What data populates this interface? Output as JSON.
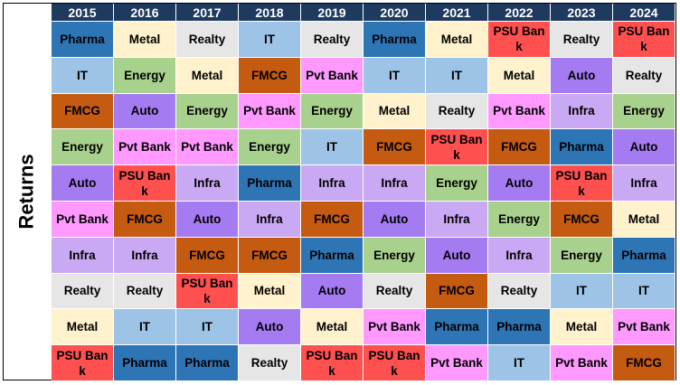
{
  "chart_data": {
    "type": "table",
    "ylabel": "Returns",
    "years": [
      "2015",
      "2016",
      "2017",
      "2018",
      "2019",
      "2020",
      "2021",
      "2022",
      "2023",
      "2024"
    ],
    "columns": [
      [
        "Pharma",
        "IT",
        "FMCG",
        "Energy",
        "Auto",
        "Pvt Bank",
        "Infra",
        "Realty",
        "Metal",
        "PSU Bank"
      ],
      [
        "Metal",
        "Energy",
        "Auto",
        "Pvt Bank",
        "PSU Bank",
        "FMCG",
        "Infra",
        "Realty",
        "IT",
        "Pharma"
      ],
      [
        "Realty",
        "Metal",
        "Energy",
        "Pvt Bank",
        "Infra",
        "Auto",
        "FMCG",
        "PSU Bank",
        "IT",
        "Pharma"
      ],
      [
        "IT",
        "FMCG",
        "Pvt Bank",
        "Energy",
        "Pharma",
        "Infra",
        "FMCG",
        "Metal",
        "Auto",
        "Realty"
      ],
      [
        "Realty",
        "Pvt Bank",
        "Energy",
        "IT",
        "Infra",
        "FMCG",
        "Pharma",
        "Auto",
        "Metal",
        "PSU Bank"
      ],
      [
        "Pharma",
        "IT",
        "Metal",
        "FMCG",
        "Infra",
        "Auto",
        "Energy",
        "Realty",
        "Pvt Bank",
        "PSU Bank"
      ],
      [
        "Metal",
        "IT",
        "Realty",
        "PSU Bank",
        "Energy",
        "Infra",
        "Auto",
        "FMCG",
        "Pharma",
        "Pvt Bank"
      ],
      [
        "PSU Bank",
        "Metal",
        "Pvt Bank",
        "FMCG",
        "Auto",
        "Energy",
        "Infra",
        "Realty",
        "Pharma",
        "IT"
      ],
      [
        "Realty",
        "Auto",
        "Infra",
        "Pharma",
        "PSU Bank",
        "FMCG",
        "Energy",
        "IT",
        "Metal",
        "Pvt Bank"
      ],
      [
        "PSU Bank",
        "Realty",
        "Energy",
        "Auto",
        "Infra",
        "Metal",
        "Pharma",
        "IT",
        "Pvt Bank",
        "FMCG"
      ]
    ],
    "sector_colors": {
      "Pharma": "#2e75b6",
      "IT": "#9dc3e6",
      "FMCG": "#c55a11",
      "Energy": "#a9d18e",
      "Auto": "#a57bf2",
      "Pvt Bank": "#ff99ff",
      "Infra": "#c9a8f4",
      "Realty": "#e7e6e6",
      "Metal": "#fff2cc",
      "PSU Bank": "#ff5050"
    },
    "header_color": "#1f3a5f"
  }
}
